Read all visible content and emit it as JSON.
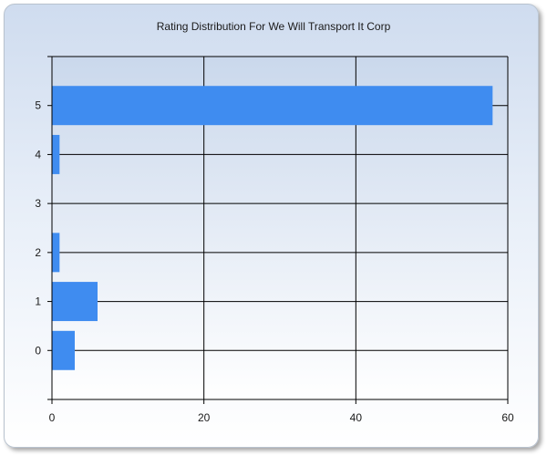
{
  "chart_data": {
    "type": "bar",
    "orientation": "horizontal",
    "title": "Rating Distribution For We Will Transport It Corp",
    "categories": [
      "0",
      "1",
      "2",
      "3",
      "4",
      "5"
    ],
    "values": [
      3,
      6,
      1,
      0,
      1,
      58
    ],
    "xlim": [
      0,
      60
    ],
    "xticks": [
      0,
      20,
      40,
      60
    ],
    "xlabel": "",
    "ylabel": "",
    "grid": true,
    "legend": "none",
    "bar_color": "#3f8cf0"
  }
}
